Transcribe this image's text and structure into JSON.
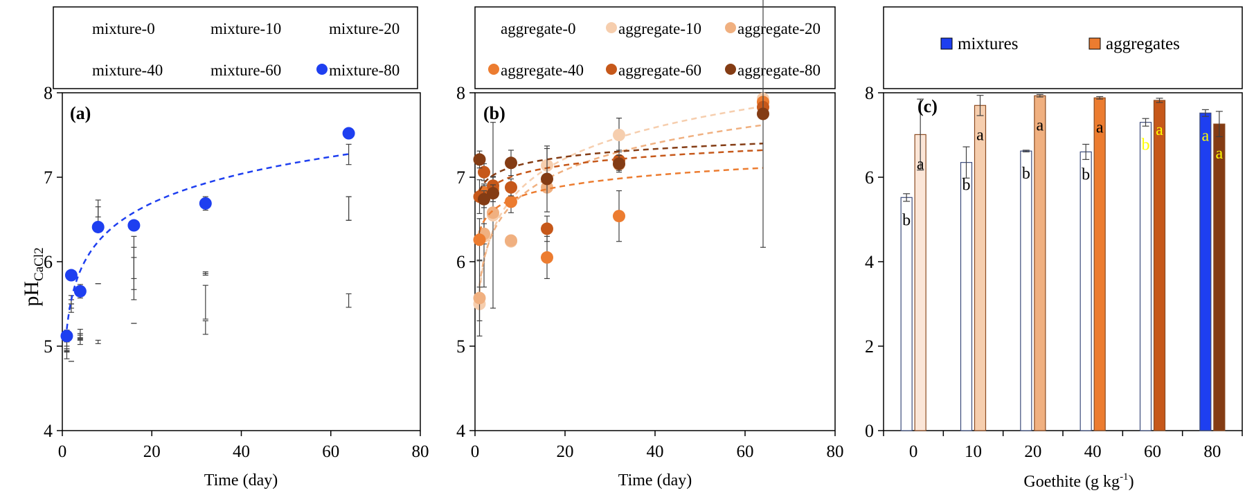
{
  "y_axis_label": "pH",
  "y_axis_label_sub": "CaCl2",
  "colors": {
    "mixture_80": "#1e3ff0",
    "mixtures_bar": "#1e3ff0",
    "aggregate_10": "#f6ceae",
    "aggregate_20": "#f0b080",
    "aggregate_40": "#ec7c30",
    "aggregate_60": "#c6581a",
    "aggregate_80": "#843c14",
    "error_bar": "#404040",
    "letter_yellow": "#ffff00"
  },
  "chart_data": [
    {
      "panel": "(a)",
      "type": "scatter",
      "xlabel": "Time (day)",
      "ylabel": "pH CaCl2",
      "xlim": [
        0,
        80
      ],
      "ylim": [
        4,
        8
      ],
      "xticks": [
        0,
        20,
        40,
        60,
        80
      ],
      "yticks": [
        4,
        5,
        6,
        7,
        8
      ],
      "grid": false,
      "legend_position": "top",
      "legend": [
        "mixture-0",
        "mixture-10",
        "mixture-20",
        "mixture-40",
        "mixture-60",
        "mixture-80"
      ],
      "series": [
        {
          "name": "mixture-80",
          "x": [
            1,
            2,
            4,
            8,
            16,
            32,
            64
          ],
          "y": [
            5.12,
            5.84,
            5.65,
            6.41,
            6.43,
            6.69,
            7.52
          ],
          "err": [
            0.07,
            0.05,
            0.08,
            0.05,
            0.05,
            0.08,
            0.05
          ],
          "fit": "log"
        }
      ],
      "hidden_series_error_bars": {
        "x": [
          1,
          2,
          4,
          8,
          16,
          32,
          64
        ],
        "groups": [
          [
            4.95,
            4.82,
            5.05,
            5.05,
            5.27,
            5.22,
            5.54
          ],
          [
            5.0,
            5.5,
            5.15,
            5.74,
            5.8,
            5.52,
            6.63
          ],
          [
            4.9,
            5.45,
            5.1,
            6.55,
            6.05,
            5.86,
            7.27
          ],
          [
            5.05,
            5.55,
            5.12,
            6.63,
            5.92,
            5.86,
            6.63
          ]
        ],
        "err": [
          [
            0.02,
            0.0,
            0.03,
            0.02,
            0.0,
            0.08,
            0.08
          ],
          [
            0.06,
            0.05,
            0.05,
            0.0,
            0.25,
            0.2,
            0.14
          ],
          [
            0.05,
            0.05,
            0.03,
            0.1,
            0.25,
            0.0,
            0.12
          ],
          [
            0.05,
            0.05,
            0.03,
            0.1,
            0.25,
            0.02,
            0.14
          ]
        ]
      }
    },
    {
      "panel": "(b)",
      "type": "scatter",
      "xlabel": "Time (day)",
      "ylabel": "",
      "xlim": [
        0,
        80
      ],
      "ylim": [
        4,
        8
      ],
      "xticks": [
        0,
        20,
        40,
        60,
        80
      ],
      "yticks": [
        4,
        5,
        6,
        7,
        8
      ],
      "grid": false,
      "legend_position": "top",
      "legend": [
        "aggregate-0",
        "aggregate-10",
        "aggregate-20",
        "aggregate-40",
        "aggregate-60",
        "aggregate-80"
      ],
      "series": [
        {
          "name": "aggregate-10",
          "x": [
            1,
            2,
            4,
            8,
            16,
            32,
            64
          ],
          "y": [
            5.5,
            6.3,
            6.55,
            6.24,
            7.14,
            7.5,
            7.93
          ],
          "err": [
            0.2,
            0.6,
            1.1,
            0.05,
            0.2,
            0.2,
            0.05
          ],
          "fit": "log"
        },
        {
          "name": "aggregate-20",
          "x": [
            1,
            2,
            4,
            8,
            16,
            32,
            64
          ],
          "y": [
            5.57,
            6.33,
            6.58,
            6.25,
            6.88,
            7.15,
            7.89
          ],
          "err": [
            0.45,
            0.12,
            0.05,
            0.05,
            0.05,
            0.05,
            0.05
          ],
          "fit": "log"
        },
        {
          "name": "aggregate-40",
          "x": [
            1,
            2,
            4,
            8,
            16,
            32,
            64
          ],
          "y": [
            6.26,
            6.82,
            6.86,
            6.71,
            6.05,
            6.54,
            7.89
          ],
          "err": [
            0.25,
            0.1,
            0.15,
            0.13,
            0.25,
            0.3,
            0.05
          ],
          "fit": "log"
        },
        {
          "name": "aggregate-60",
          "x": [
            1,
            2,
            4,
            8,
            16,
            32,
            64
          ],
          "y": [
            6.77,
            7.06,
            6.9,
            6.88,
            6.39,
            7.2,
            7.83
          ],
          "err": [
            0.2,
            0.1,
            0.1,
            0.1,
            0.15,
            0.12,
            0.05
          ],
          "fit": "log"
        },
        {
          "name": "aggregate-80",
          "x": [
            1,
            2,
            4,
            8,
            16,
            32,
            64
          ],
          "y": [
            7.21,
            6.74,
            6.81,
            7.17,
            6.98,
            7.16,
            7.75
          ],
          "err": [
            0.1,
            0.1,
            0.1,
            0.15,
            0.39,
            0.1,
            1.58
          ],
          "fit": "log"
        }
      ]
    },
    {
      "panel": "(c)",
      "type": "bar",
      "xlabel": "Goethite (g kg",
      "xlabel_sup": "-1",
      "xlabel_end": ")",
      "categories": [
        "0",
        "10",
        "20",
        "40",
        "60",
        "80"
      ],
      "ylim": [
        0,
        8
      ],
      "yticks": [
        0,
        2,
        4,
        6,
        8
      ],
      "grid": false,
      "legend_position": "top",
      "series": [
        {
          "name": "mixtures",
          "values": [
            5.52,
            6.35,
            6.62,
            6.6,
            7.3,
            7.52
          ],
          "err": [
            0.09,
            0.37,
            0.02,
            0.18,
            0.09,
            0.08
          ],
          "letters": [
            "b",
            "b",
            "b",
            "b",
            "b",
            "a"
          ],
          "fills": [
            "#ffffff",
            "#ffffff",
            "#ffffff",
            "#ffffff",
            "#ffffff",
            "#1e3ff0"
          ],
          "letter_colors": [
            "#000000",
            "#000000",
            "#000000",
            "#000000",
            "#ffff00",
            "#ffff00"
          ]
        },
        {
          "name": "aggregates",
          "values": [
            7.01,
            7.7,
            7.93,
            7.88,
            7.82,
            7.26
          ],
          "err": [
            0.84,
            0.24,
            0.03,
            0.03,
            0.05,
            0.3
          ],
          "letters": [
            "a",
            "a",
            "a",
            "a",
            "a",
            "a"
          ],
          "fills": [
            "#fbe6d8",
            "#f6ceae",
            "#f0b080",
            "#ec7c30",
            "#c6581a",
            "#843c14"
          ],
          "letter_colors": [
            "#000000",
            "#000000",
            "#000000",
            "#000000",
            "#ffff00",
            "#ffff00"
          ]
        }
      ]
    }
  ]
}
